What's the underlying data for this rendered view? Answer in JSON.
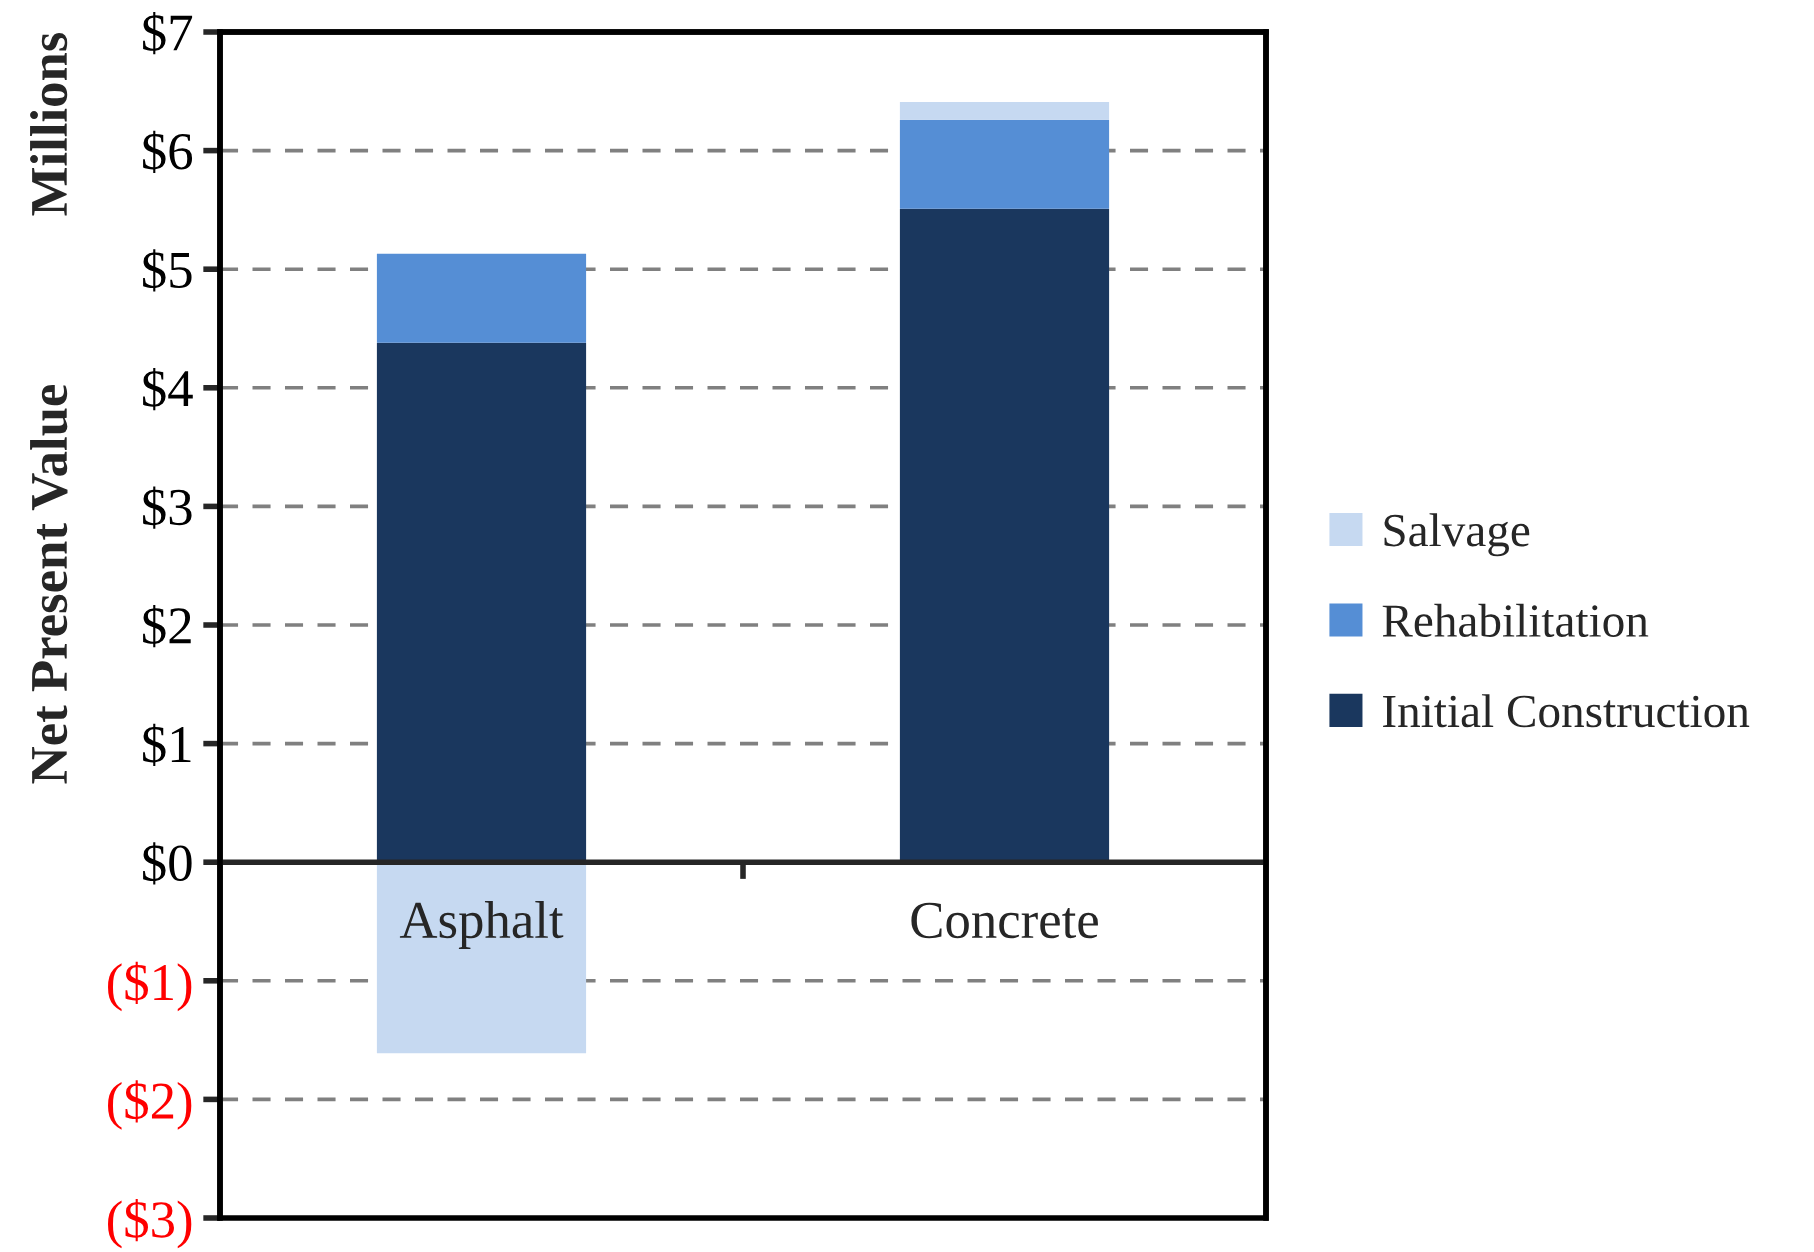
{
  "chart_data": {
    "type": "bar",
    "stacked": true,
    "ylabel": "Net Present Value",
    "annotations": [
      "Millions"
    ],
    "categories": [
      "Asphalt",
      "Concrete"
    ],
    "series": [
      {
        "name": "Initial Construction",
        "color": "#1a375e",
        "values": [
          4.38,
          5.51
        ]
      },
      {
        "name": "Rehabilitation",
        "color": "#558ed5",
        "values": [
          0.75,
          0.75
        ]
      },
      {
        "name": "Salvage",
        "color": "#c6d9f1",
        "values": [
          -1.61,
          0.15
        ]
      }
    ],
    "ylim": [
      -3,
      7
    ],
    "yticks": [
      {
        "value": -3,
        "label": "($3)"
      },
      {
        "value": -2,
        "label": "($2)"
      },
      {
        "value": -1,
        "label": "($1)"
      },
      {
        "value": 0,
        "label": "$0"
      },
      {
        "value": 1,
        "label": "$1"
      },
      {
        "value": 2,
        "label": "$2"
      },
      {
        "value": 3,
        "label": "$3"
      },
      {
        "value": 4,
        "label": "$4"
      },
      {
        "value": 5,
        "label": "$5"
      },
      {
        "value": 6,
        "label": "$6"
      },
      {
        "value": 7,
        "label": "$7"
      }
    ],
    "grid": "y",
    "legend": "right"
  }
}
